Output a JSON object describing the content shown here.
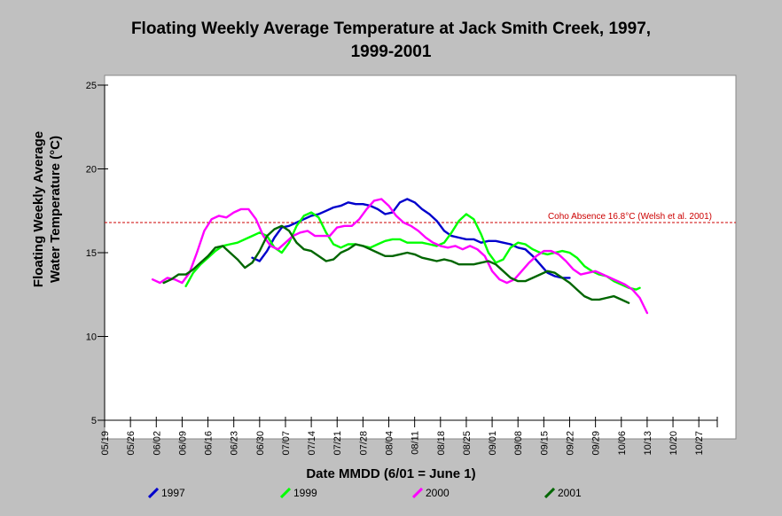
{
  "chart_data": {
    "type": "line",
    "title": "Floating Weekly Average Temperature at Jack Smith Creek, 1997, 1999-2001",
    "title_lines": [
      "Floating Weekly Average Temperature at Jack Smith Creek, 1997,",
      "1999-2001"
    ],
    "xlabel": "Date MMDD (6/01 = June 1)",
    "ylabel_lines": [
      "Floating Weekly Average",
      "Water Temperature (°C)"
    ],
    "x_tick_labels": [
      "05/19",
      "05/26",
      "06/02",
      "06/09",
      "06/16",
      "06/23",
      "06/30",
      "07/07",
      "07/14",
      "07/21",
      "07/28",
      "08/04",
      "08/11",
      "08/18",
      "08/25",
      "09/01",
      "09/08",
      "09/15",
      "09/22",
      "09/29",
      "10/06",
      "10/13",
      "10/20",
      "10/27"
    ],
    "xlim": [
      "05/19",
      "11/01"
    ],
    "ylim": [
      5,
      25
    ],
    "y_ticks": [
      5,
      10,
      15,
      20,
      25
    ],
    "grid": false,
    "legend_position": "bottom",
    "reference_line": {
      "label": "Coho Absence 16.8°C (Welsh et al. 2001)",
      "y": 16.8,
      "color": "#cc0000"
    },
    "series": [
      {
        "name": "1997",
        "color": "#0000cc",
        "points": [
          [
            "06/28",
            14.7
          ],
          [
            "06/30",
            14.5
          ],
          [
            "07/02",
            15.1
          ],
          [
            "07/04",
            15.9
          ],
          [
            "07/06",
            16.5
          ],
          [
            "07/08",
            16.6
          ],
          [
            "07/10",
            16.8
          ],
          [
            "07/12",
            17.0
          ],
          [
            "07/14",
            17.2
          ],
          [
            "07/16",
            17.3
          ],
          [
            "07/18",
            17.5
          ],
          [
            "07/20",
            17.7
          ],
          [
            "07/22",
            17.8
          ],
          [
            "07/24",
            18.0
          ],
          [
            "07/26",
            17.9
          ],
          [
            "07/28",
            17.9
          ],
          [
            "07/30",
            17.8
          ],
          [
            "08/01",
            17.6
          ],
          [
            "08/03",
            17.3
          ],
          [
            "08/05",
            17.4
          ],
          [
            "08/07",
            18.0
          ],
          [
            "08/09",
            18.2
          ],
          [
            "08/11",
            18.0
          ],
          [
            "08/13",
            17.6
          ],
          [
            "08/15",
            17.3
          ],
          [
            "08/17",
            16.9
          ],
          [
            "08/19",
            16.3
          ],
          [
            "08/21",
            16.0
          ],
          [
            "08/23",
            15.9
          ],
          [
            "08/25",
            15.8
          ],
          [
            "08/27",
            15.8
          ],
          [
            "08/29",
            15.6
          ],
          [
            "08/31",
            15.7
          ],
          [
            "09/02",
            15.7
          ],
          [
            "09/04",
            15.6
          ],
          [
            "09/06",
            15.5
          ],
          [
            "09/08",
            15.3
          ],
          [
            "09/10",
            15.2
          ],
          [
            "09/12",
            14.8
          ],
          [
            "09/14",
            14.3
          ],
          [
            "09/16",
            13.8
          ],
          [
            "09/18",
            13.6
          ],
          [
            "09/20",
            13.5
          ],
          [
            "09/22",
            13.5
          ]
        ]
      },
      {
        "name": "1999",
        "color": "#00ff00",
        "points": [
          [
            "06/10",
            13.0
          ],
          [
            "06/12",
            13.8
          ],
          [
            "06/14",
            14.3
          ],
          [
            "06/16",
            14.7
          ],
          [
            "06/18",
            15.1
          ],
          [
            "06/20",
            15.4
          ],
          [
            "06/22",
            15.5
          ],
          [
            "06/24",
            15.6
          ],
          [
            "06/26",
            15.8
          ],
          [
            "06/28",
            16.0
          ],
          [
            "06/30",
            16.2
          ],
          [
            "07/02",
            16.0
          ],
          [
            "07/04",
            15.3
          ],
          [
            "07/06",
            15.0
          ],
          [
            "07/08",
            15.6
          ],
          [
            "07/10",
            16.6
          ],
          [
            "07/12",
            17.2
          ],
          [
            "07/14",
            17.4
          ],
          [
            "07/16",
            17.1
          ],
          [
            "07/18",
            16.2
          ],
          [
            "07/20",
            15.5
          ],
          [
            "07/22",
            15.3
          ],
          [
            "07/24",
            15.5
          ],
          [
            "07/26",
            15.5
          ],
          [
            "07/28",
            15.4
          ],
          [
            "07/30",
            15.3
          ],
          [
            "08/01",
            15.5
          ],
          [
            "08/03",
            15.7
          ],
          [
            "08/05",
            15.8
          ],
          [
            "08/07",
            15.8
          ],
          [
            "08/09",
            15.6
          ],
          [
            "08/11",
            15.6
          ],
          [
            "08/13",
            15.6
          ],
          [
            "08/15",
            15.5
          ],
          [
            "08/17",
            15.4
          ],
          [
            "08/19",
            15.6
          ],
          [
            "08/21",
            16.2
          ],
          [
            "08/23",
            16.9
          ],
          [
            "08/25",
            17.3
          ],
          [
            "08/27",
            17.0
          ],
          [
            "08/29",
            16.1
          ],
          [
            "08/31",
            15.0
          ],
          [
            "09/02",
            14.4
          ],
          [
            "09/04",
            14.6
          ],
          [
            "09/06",
            15.3
          ],
          [
            "09/08",
            15.6
          ],
          [
            "09/10",
            15.5
          ],
          [
            "09/12",
            15.2
          ],
          [
            "09/14",
            15.0
          ],
          [
            "09/16",
            14.9
          ],
          [
            "09/18",
            15.0
          ],
          [
            "09/20",
            15.1
          ],
          [
            "09/22",
            15.0
          ],
          [
            "09/24",
            14.7
          ],
          [
            "09/26",
            14.2
          ],
          [
            "09/28",
            13.9
          ],
          [
            "09/30",
            13.7
          ],
          [
            "10/02",
            13.6
          ],
          [
            "10/04",
            13.3
          ],
          [
            "10/06",
            13.1
          ],
          [
            "10/08",
            12.9
          ],
          [
            "10/10",
            12.8
          ],
          [
            "10/11",
            12.9
          ]
        ]
      },
      {
        "name": "2000",
        "color": "#ff00ff",
        "points": [
          [
            "06/01",
            13.4
          ],
          [
            "06/03",
            13.2
          ],
          [
            "06/05",
            13.5
          ],
          [
            "06/07",
            13.4
          ],
          [
            "06/09",
            13.2
          ],
          [
            "06/11",
            13.8
          ],
          [
            "06/13",
            15.0
          ],
          [
            "06/15",
            16.3
          ],
          [
            "06/17",
            17.0
          ],
          [
            "06/19",
            17.2
          ],
          [
            "06/21",
            17.1
          ],
          [
            "06/23",
            17.4
          ],
          [
            "06/25",
            17.6
          ],
          [
            "06/27",
            17.6
          ],
          [
            "06/29",
            17.0
          ],
          [
            "07/01",
            16.0
          ],
          [
            "07/03",
            15.4
          ],
          [
            "07/05",
            15.2
          ],
          [
            "07/07",
            15.6
          ],
          [
            "07/09",
            16.0
          ],
          [
            "07/11",
            16.2
          ],
          [
            "07/13",
            16.3
          ],
          [
            "07/15",
            16.0
          ],
          [
            "07/17",
            16.0
          ],
          [
            "07/19",
            16.0
          ],
          [
            "07/21",
            16.5
          ],
          [
            "07/23",
            16.6
          ],
          [
            "07/25",
            16.6
          ],
          [
            "07/27",
            17.0
          ],
          [
            "07/29",
            17.6
          ],
          [
            "07/31",
            18.1
          ],
          [
            "08/02",
            18.2
          ],
          [
            "08/04",
            17.8
          ],
          [
            "08/06",
            17.2
          ],
          [
            "08/08",
            16.8
          ],
          [
            "08/10",
            16.6
          ],
          [
            "08/12",
            16.3
          ],
          [
            "08/14",
            15.9
          ],
          [
            "08/16",
            15.6
          ],
          [
            "08/18",
            15.4
          ],
          [
            "08/20",
            15.3
          ],
          [
            "08/22",
            15.4
          ],
          [
            "08/24",
            15.2
          ],
          [
            "08/26",
            15.4
          ],
          [
            "08/28",
            15.2
          ],
          [
            "08/30",
            14.8
          ],
          [
            "09/01",
            13.9
          ],
          [
            "09/03",
            13.4
          ],
          [
            "09/05",
            13.2
          ],
          [
            "09/07",
            13.4
          ],
          [
            "09/09",
            13.9
          ],
          [
            "09/11",
            14.4
          ],
          [
            "09/13",
            14.8
          ],
          [
            "09/15",
            15.1
          ],
          [
            "09/17",
            15.1
          ],
          [
            "09/19",
            14.9
          ],
          [
            "09/21",
            14.5
          ],
          [
            "09/23",
            14.0
          ],
          [
            "09/25",
            13.7
          ],
          [
            "09/27",
            13.8
          ],
          [
            "09/29",
            13.9
          ],
          [
            "10/01",
            13.7
          ],
          [
            "10/03",
            13.5
          ],
          [
            "10/05",
            13.3
          ],
          [
            "10/07",
            13.1
          ],
          [
            "10/09",
            12.8
          ],
          [
            "10/11",
            12.3
          ],
          [
            "10/13",
            11.4
          ]
        ]
      },
      {
        "name": "2001",
        "color": "#006600",
        "points": [
          [
            "06/04",
            13.2
          ],
          [
            "06/06",
            13.4
          ],
          [
            "06/08",
            13.7
          ],
          [
            "06/10",
            13.7
          ],
          [
            "06/12",
            14.0
          ],
          [
            "06/14",
            14.4
          ],
          [
            "06/16",
            14.8
          ],
          [
            "06/18",
            15.3
          ],
          [
            "06/20",
            15.4
          ],
          [
            "06/22",
            15.0
          ],
          [
            "06/24",
            14.6
          ],
          [
            "06/26",
            14.1
          ],
          [
            "06/28",
            14.4
          ],
          [
            "06/30",
            15.1
          ],
          [
            "07/02",
            16.0
          ],
          [
            "07/04",
            16.4
          ],
          [
            "07/06",
            16.6
          ],
          [
            "07/08",
            16.3
          ],
          [
            "07/10",
            15.6
          ],
          [
            "07/12",
            15.2
          ],
          [
            "07/14",
            15.1
          ],
          [
            "07/16",
            14.8
          ],
          [
            "07/18",
            14.5
          ],
          [
            "07/20",
            14.6
          ],
          [
            "07/22",
            15.0
          ],
          [
            "07/24",
            15.2
          ],
          [
            "07/26",
            15.5
          ],
          [
            "07/28",
            15.4
          ],
          [
            "07/30",
            15.2
          ],
          [
            "08/01",
            15.0
          ],
          [
            "08/03",
            14.8
          ],
          [
            "08/05",
            14.8
          ],
          [
            "08/07",
            14.9
          ],
          [
            "08/09",
            15.0
          ],
          [
            "08/11",
            14.9
          ],
          [
            "08/13",
            14.7
          ],
          [
            "08/15",
            14.6
          ],
          [
            "08/17",
            14.5
          ],
          [
            "08/19",
            14.6
          ],
          [
            "08/21",
            14.5
          ],
          [
            "08/23",
            14.3
          ],
          [
            "08/25",
            14.3
          ],
          [
            "08/27",
            14.3
          ],
          [
            "08/29",
            14.4
          ],
          [
            "08/31",
            14.5
          ],
          [
            "09/02",
            14.3
          ],
          [
            "09/04",
            13.9
          ],
          [
            "09/06",
            13.5
          ],
          [
            "09/08",
            13.3
          ],
          [
            "09/10",
            13.3
          ],
          [
            "09/12",
            13.5
          ],
          [
            "09/14",
            13.7
          ],
          [
            "09/16",
            13.9
          ],
          [
            "09/18",
            13.8
          ],
          [
            "09/20",
            13.5
          ],
          [
            "09/22",
            13.2
          ],
          [
            "09/24",
            12.8
          ],
          [
            "09/26",
            12.4
          ],
          [
            "09/28",
            12.2
          ],
          [
            "09/30",
            12.2
          ],
          [
            "10/02",
            12.3
          ],
          [
            "10/04",
            12.4
          ],
          [
            "10/06",
            12.2
          ],
          [
            "10/08",
            12.0
          ]
        ]
      }
    ]
  }
}
